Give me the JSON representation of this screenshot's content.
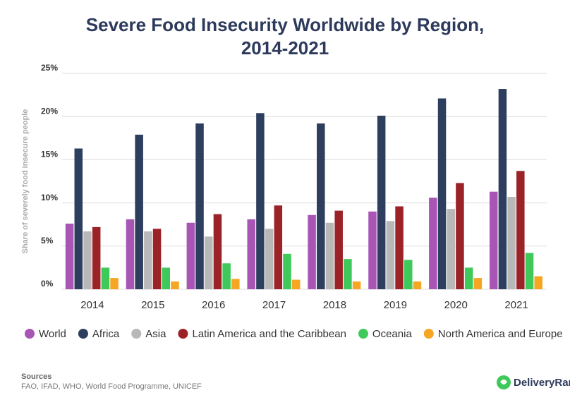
{
  "chart_data": {
    "type": "bar",
    "title": [
      "Severe Food Insecurity Worldwide by Region,",
      "2014-2021"
    ],
    "y_label": "Share of severely food insecure people",
    "categories": [
      "2014",
      "2015",
      "2016",
      "2017",
      "2018",
      "2019",
      "2020",
      "2021"
    ],
    "series": [
      {
        "name": "World",
        "color": "#a855b5",
        "values": [
          7.6,
          8.1,
          7.7,
          8.1,
          8.6,
          9.0,
          10.6,
          11.3
        ]
      },
      {
        "name": "Africa",
        "color": "#2d3e5e",
        "values": [
          16.3,
          17.9,
          19.2,
          20.4,
          19.2,
          20.1,
          22.1,
          23.2
        ]
      },
      {
        "name": "Asia",
        "color": "#b8b8b8",
        "values": [
          6.7,
          6.7,
          6.1,
          7.0,
          7.7,
          7.9,
          9.3,
          10.7
        ]
      },
      {
        "name": "Latin America and the Caribbean",
        "color": "#9b2226",
        "values": [
          7.2,
          7.0,
          8.7,
          9.7,
          9.1,
          9.6,
          12.3,
          13.7
        ]
      },
      {
        "name": "Oceania",
        "color": "#3ec95a",
        "values": [
          2.5,
          2.5,
          3.0,
          4.1,
          3.5,
          3.4,
          2.5,
          4.2
        ]
      },
      {
        "name": "North America and Europe",
        "color": "#f5a623",
        "values": [
          1.3,
          0.9,
          1.2,
          1.1,
          0.9,
          0.9,
          1.3,
          1.5
        ]
      }
    ],
    "ylim": [
      0,
      25
    ],
    "yticks": [
      {
        "value": 0,
        "label": "0%"
      },
      {
        "value": 5,
        "label": "5%"
      },
      {
        "value": 10,
        "label": "10%"
      },
      {
        "value": 15,
        "label": "15%"
      },
      {
        "value": 20,
        "label": "20%"
      },
      {
        "value": 25,
        "label": "25%"
      }
    ],
    "grid": true,
    "legend": "bottom",
    "sources_heading": "Sources",
    "sources": "FAO, IFAD, WHO, World Food Programme, UNICEF",
    "brand": "DeliveryRank"
  }
}
